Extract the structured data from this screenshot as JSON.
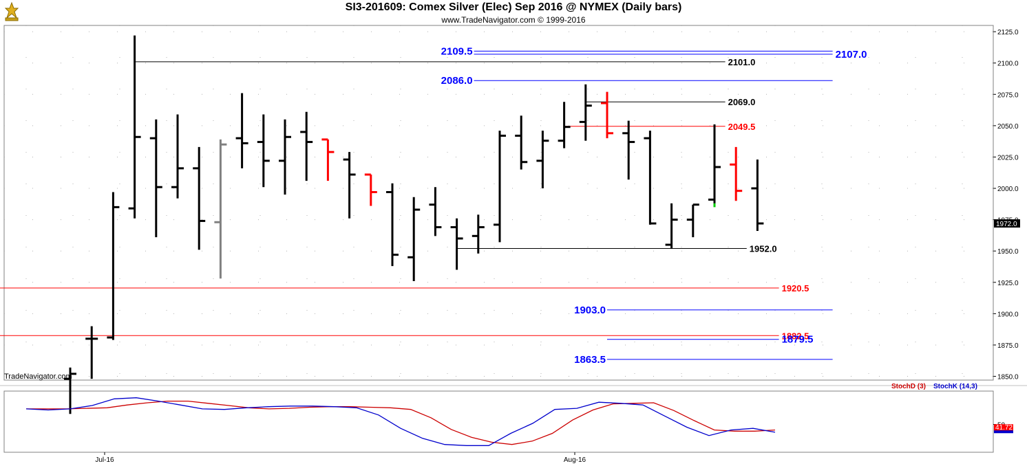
{
  "header": {
    "title": "SI3-201609:  Comex Silver (Elec) Sep 2016 @ NYMEX  (Daily bars)",
    "subtitle": "www.TradeNavigator.com © 1999-2016",
    "watermark": "TradeNavigator.com"
  },
  "chart_data": [
    {
      "type": "ohlc",
      "panel": "price",
      "y_ticks": [
        "2125.0",
        "2100.0",
        "2075.0",
        "2050.0",
        "2025.0",
        "2000.0",
        "1975.0",
        "1950.0",
        "1925.0",
        "1900.0",
        "1875.0",
        "1850.0"
      ],
      "ylim": [
        1847,
        2130
      ],
      "last_price": "1972.0",
      "x_labels": [
        "Jul-16",
        "Aug-16"
      ],
      "colors": {
        "up": "#000000",
        "down": "#000000",
        "red_bar": "#ff0000",
        "gray_bar": "#808080",
        "green_bar": "#00cc00"
      },
      "bars": [
        {
          "o": 1848,
          "h": 1857,
          "l": 1820,
          "c": 1852,
          "color": "#000000"
        },
        {
          "o": 1880,
          "h": 1890,
          "l": 1848,
          "c": 1880,
          "color": "#000000"
        },
        {
          "o": 1881,
          "h": 1997,
          "l": 1879,
          "c": 1985,
          "color": "#000000"
        },
        {
          "o": 1984,
          "h": 2122,
          "l": 1976,
          "c": 2041,
          "color": "#000000"
        },
        {
          "o": 2040,
          "h": 2055,
          "l": 1961,
          "c": 2001,
          "color": "#000000"
        },
        {
          "o": 2001,
          "h": 2059,
          "l": 1992,
          "c": 2016,
          "color": "#000000"
        },
        {
          "o": 2016,
          "h": 2033,
          "l": 1951,
          "c": 1974,
          "color": "#000000"
        },
        {
          "o": 1973,
          "h": 2039,
          "l": 1928,
          "c": 2035,
          "color": "#808080"
        },
        {
          "o": 2040,
          "h": 2076,
          "l": 2016,
          "c": 2036,
          "color": "#000000"
        },
        {
          "o": 2037,
          "h": 2059,
          "l": 2001,
          "c": 2022,
          "color": "#000000"
        },
        {
          "o": 2022,
          "h": 2055,
          "l": 1995,
          "c": 2041,
          "color": "#000000"
        },
        {
          "o": 2045,
          "h": 2061,
          "l": 2006,
          "c": 2037,
          "color": "#000000"
        },
        {
          "o": 2039,
          "h": 2039,
          "l": 2006,
          "c": 2029,
          "color": "#ff0000"
        },
        {
          "o": 2023,
          "h": 2029,
          "l": 1976,
          "c": 2011,
          "color": "#000000"
        },
        {
          "o": 2011,
          "h": 2011,
          "l": 1986,
          "c": 1997,
          "color": "#ff0000"
        },
        {
          "o": 1997,
          "h": 2004,
          "l": 1938,
          "c": 1947,
          "color": "#000000"
        },
        {
          "o": 1945,
          "h": 1993,
          "l": 1926,
          "c": 1983,
          "color": "#000000"
        },
        {
          "o": 1987,
          "h": 2001,
          "l": 1962,
          "c": 1969,
          "color": "#000000"
        },
        {
          "o": 1969,
          "h": 1976,
          "l": 1935,
          "c": 1960,
          "color": "#000000"
        },
        {
          "o": 1962,
          "h": 1979,
          "l": 1948,
          "c": 1969,
          "color": "#000000"
        },
        {
          "o": 1971,
          "h": 2046,
          "l": 1957,
          "c": 2042,
          "color": "#000000"
        },
        {
          "o": 2042,
          "h": 2058,
          "l": 2015,
          "c": 2021,
          "color": "#000000"
        },
        {
          "o": 2022,
          "h": 2046,
          "l": 2000,
          "c": 2038,
          "color": "#000000"
        },
        {
          "o": 2038,
          "h": 2069,
          "l": 2032,
          "c": 2049,
          "color": "#000000"
        },
        {
          "o": 2053,
          "h": 2083,
          "l": 2038,
          "c": 2066,
          "color": "#000000"
        },
        {
          "o": 2068,
          "h": 2077,
          "l": 2040,
          "c": 2044,
          "color": "#ff0000"
        },
        {
          "o": 2044,
          "h": 2054,
          "l": 2007,
          "c": 2037,
          "color": "#000000"
        },
        {
          "o": 2040,
          "h": 2046,
          "l": 1971,
          "c": 1972,
          "color": "#000000"
        },
        {
          "o": 1955,
          "h": 1988,
          "l": 1952,
          "c": 1975,
          "color": "#000000"
        },
        {
          "o": 1975,
          "h": 1987,
          "l": 1961,
          "c": 1987,
          "color": "#000000"
        },
        {
          "o": 1991,
          "h": 2051,
          "l": 1988,
          "c": 2017,
          "color": "#000000"
        },
        {
          "o": 2019,
          "h": 2033,
          "l": 1990,
          "c": 1998,
          "color": "#ff0000"
        },
        {
          "o": 2000,
          "h": 2023,
          "l": 1966,
          "c": 1972,
          "color": "#000000"
        }
      ],
      "levels": [
        {
          "value": 2109.5,
          "label": "2109.5",
          "color": "#0000ff",
          "label_side": "left",
          "x_from": 18.8,
          "x_to": 35.5
        },
        {
          "value": 2107.0,
          "label": "2107.0",
          "color": "#0000ff",
          "label_side": "right",
          "x_from": 18.8,
          "x_to": 35.5
        },
        {
          "value": 2101.0,
          "label": "2101.0",
          "color": "#000000",
          "label_side": "right",
          "x_from": 3.0,
          "x_to": 30.5
        },
        {
          "value": 2086.0,
          "label": "2086.0",
          "color": "#0000ff",
          "label_side": "left",
          "x_from": 18.8,
          "x_to": 35.5
        },
        {
          "value": 2069.0,
          "label": "2069.0",
          "color": "#000000",
          "label_side": "right",
          "x_from": 24.0,
          "x_to": 30.5
        },
        {
          "value": 2049.5,
          "label": "2049.5",
          "color": "#ff0000",
          "label_side": "right",
          "x_from": 23.0,
          "x_to": 30.5
        },
        {
          "value": 1952.0,
          "label": "1952.0",
          "color": "#000000",
          "label_side": "right",
          "x_from": 18.0,
          "x_to": 31.5
        },
        {
          "value": 1920.5,
          "label": "1920.5",
          "color": "#ff0000",
          "label_side": "right",
          "x_from": -4.0,
          "x_to": 33.0
        },
        {
          "value": 1903.0,
          "label": "1903.0",
          "color": "#0000ff",
          "label_side": "left",
          "x_from": 25.0,
          "x_to": 35.5
        },
        {
          "value": 1882.5,
          "label": "1882.5",
          "color": "#ff0000",
          "label_side": "right",
          "x_from": -4.0,
          "x_to": 33.0
        },
        {
          "value": 1879.5,
          "label": "1879.5",
          "color": "#0000ff",
          "label_side": "right",
          "x_from": 25.0,
          "x_to": 33.0
        },
        {
          "value": 1863.5,
          "label": "1863.5",
          "color": "#0000ff",
          "label_side": "left",
          "x_from": 25.0,
          "x_to": 35.5
        }
      ]
    },
    {
      "type": "line",
      "panel": "stochastic",
      "ylim": [
        0,
        110
      ],
      "y_ticks": [
        "50"
      ],
      "series": [
        {
          "name": "StochD (3)",
          "color": "#cc0000",
          "values": [
            78,
            78,
            78,
            79,
            80,
            85,
            89,
            92,
            92,
            88,
            84,
            80,
            78,
            79,
            81,
            82,
            82,
            81,
            80,
            77,
            62,
            41,
            27,
            18,
            14,
            20,
            34,
            58,
            76,
            87,
            88,
            89,
            75,
            57,
            40,
            38,
            38,
            40
          ]
        },
        {
          "name": "StochK (14,3)",
          "color": "#0000cc",
          "values": [
            78,
            76,
            78,
            84,
            96,
            98,
            92,
            85,
            78,
            77,
            80,
            82,
            83,
            83,
            82,
            80,
            67,
            43,
            25,
            14,
            12,
            12,
            34,
            52,
            77,
            79,
            90,
            88,
            85,
            65,
            45,
            30,
            40,
            43,
            36
          ]
        }
      ],
      "last_value": "41.72",
      "legend": [
        "StochD (3)",
        "StochK (14,3)"
      ]
    }
  ]
}
